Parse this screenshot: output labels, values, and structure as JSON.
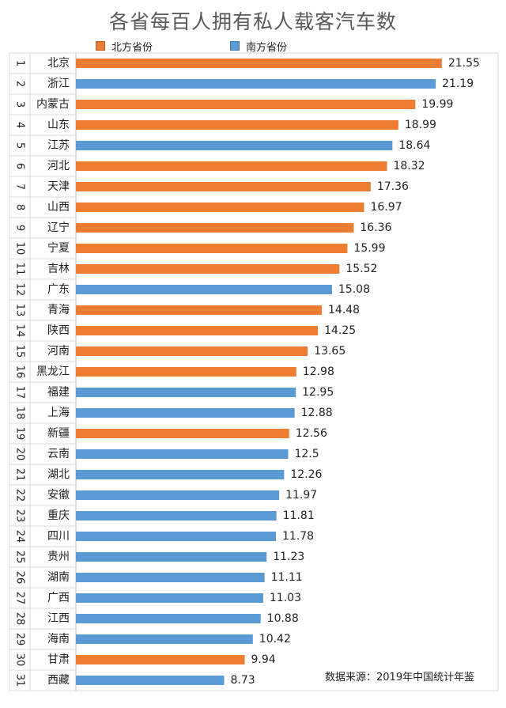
{
  "colors": {
    "north": "#ED7D31",
    "south": "#5B9BD5",
    "grid": "#D9D9D9",
    "axis_text": "#222222"
  },
  "legend": {
    "north_label": "北方省份",
    "south_label": "南方省份"
  },
  "source_note": "数据来源：2019年中国统计年鉴",
  "chart_data": {
    "type": "bar",
    "orientation": "horizontal",
    "title": "各省每百人拥有私人载客汽车数",
    "xlim": [
      0,
      23
    ],
    "grid": true,
    "legend_position": "top",
    "series": [
      {
        "name": "北方省份",
        "color_key": "north"
      },
      {
        "name": "南方省份",
        "color_key": "south"
      }
    ],
    "rows": [
      {
        "rank": "1",
        "province": "北京",
        "value": 21.55,
        "group": "north",
        "label": "21.55"
      },
      {
        "rank": "2",
        "province": "浙江",
        "value": 21.19,
        "group": "south",
        "label": "21.19"
      },
      {
        "rank": "3",
        "province": "内蒙古",
        "value": 19.99,
        "group": "north",
        "label": "19.99"
      },
      {
        "rank": "4",
        "province": "山东",
        "value": 18.99,
        "group": "north",
        "label": "18.99"
      },
      {
        "rank": "5",
        "province": "江苏",
        "value": 18.64,
        "group": "south",
        "label": "18.64"
      },
      {
        "rank": "6",
        "province": "河北",
        "value": 18.32,
        "group": "north",
        "label": "18.32"
      },
      {
        "rank": "7",
        "province": "天津",
        "value": 17.36,
        "group": "north",
        "label": "17.36"
      },
      {
        "rank": "8",
        "province": "山西",
        "value": 16.97,
        "group": "north",
        "label": "16.97"
      },
      {
        "rank": "9",
        "province": "辽宁",
        "value": 16.36,
        "group": "north",
        "label": "16.36"
      },
      {
        "rank": "10",
        "province": "宁夏",
        "value": 15.99,
        "group": "north",
        "label": "15.99"
      },
      {
        "rank": "11",
        "province": "吉林",
        "value": 15.52,
        "group": "north",
        "label": "15.52"
      },
      {
        "rank": "12",
        "province": "广东",
        "value": 15.08,
        "group": "south",
        "label": "15.08"
      },
      {
        "rank": "13",
        "province": "青海",
        "value": 14.48,
        "group": "north",
        "label": "14.48"
      },
      {
        "rank": "14",
        "province": "陕西",
        "value": 14.25,
        "group": "north",
        "label": "14.25"
      },
      {
        "rank": "15",
        "province": "河南",
        "value": 13.65,
        "group": "north",
        "label": "13.65"
      },
      {
        "rank": "16",
        "province": "黑龙江",
        "value": 12.98,
        "group": "north",
        "label": "12.98"
      },
      {
        "rank": "17",
        "province": "福建",
        "value": 12.95,
        "group": "south",
        "label": "12.95"
      },
      {
        "rank": "18",
        "province": "上海",
        "value": 12.88,
        "group": "south",
        "label": "12.88"
      },
      {
        "rank": "19",
        "province": "新疆",
        "value": 12.56,
        "group": "north",
        "label": "12.56"
      },
      {
        "rank": "20",
        "province": "云南",
        "value": 12.5,
        "group": "south",
        "label": "12.5"
      },
      {
        "rank": "21",
        "province": "湖北",
        "value": 12.26,
        "group": "south",
        "label": "12.26"
      },
      {
        "rank": "22",
        "province": "安徽",
        "value": 11.97,
        "group": "south",
        "label": "11.97"
      },
      {
        "rank": "23",
        "province": "重庆",
        "value": 11.81,
        "group": "south",
        "label": "11.81"
      },
      {
        "rank": "24",
        "province": "四川",
        "value": 11.78,
        "group": "south",
        "label": "11.78"
      },
      {
        "rank": "25",
        "province": "贵州",
        "value": 11.23,
        "group": "south",
        "label": "11.23"
      },
      {
        "rank": "26",
        "province": "湖南",
        "value": 11.11,
        "group": "south",
        "label": "11.11"
      },
      {
        "rank": "27",
        "province": "广西",
        "value": 11.03,
        "group": "south",
        "label": "11.03"
      },
      {
        "rank": "28",
        "province": "江西",
        "value": 10.88,
        "group": "south",
        "label": "10.88"
      },
      {
        "rank": "29",
        "province": "海南",
        "value": 10.42,
        "group": "south",
        "label": "10.42"
      },
      {
        "rank": "30",
        "province": "甘肃",
        "value": 9.94,
        "group": "north",
        "label": "9.94"
      },
      {
        "rank": "31",
        "province": "西藏",
        "value": 8.73,
        "group": "south",
        "label": "8.73"
      }
    ]
  }
}
